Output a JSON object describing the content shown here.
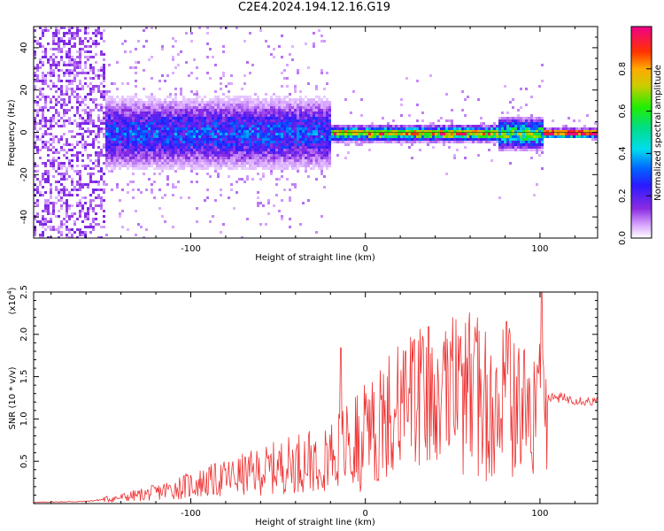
{
  "title": "C2E4.2024.194.12.16.G19",
  "chart_data": [
    {
      "type": "heatmap",
      "xlabel": "Height of straight line (km)",
      "ylabel": "Frequency (Hz)",
      "xlim": [
        -190,
        133
      ],
      "ylim": [
        -50,
        50
      ],
      "x_ticks": [
        -100,
        0,
        100
      ],
      "x_tick_labels": [
        "-100",
        "0",
        "100"
      ],
      "y_ticks": [
        -40,
        -20,
        0,
        20,
        40
      ],
      "y_tick_labels": [
        "-40",
        "-20",
        "0",
        "20",
        "40"
      ],
      "colorbar": {
        "label": "Normalized spectral amplitude",
        "range": [
          0,
          1
        ],
        "ticks": [
          0.0,
          0.2,
          0.4,
          0.6,
          0.8
        ],
        "tick_labels": [
          "0.0",
          "0.2",
          "0.4",
          "0.6",
          "0.8"
        ]
      },
      "bands": [
        {
          "x_start": -190,
          "x_end": -150,
          "half_width_hz": 50,
          "amplitude": 0.08
        },
        {
          "x_start": -150,
          "x_end": -20,
          "half_width_hz": 11,
          "amplitude": 0.28
        },
        {
          "x_start": -20,
          "x_end": 75,
          "half_width_hz": 2.5,
          "amplitude": 0.7
        },
        {
          "x_start": 75,
          "x_end": 102,
          "half_width_hz": 5,
          "amplitude": 0.55
        },
        {
          "x_start": 102,
          "x_end": 133,
          "half_width_hz": 1.5,
          "amplitude": 0.9
        }
      ],
      "grid": false
    },
    {
      "type": "line",
      "xlabel": "Height of straight line (km)",
      "ylabel": "SNR (10 * v/v)",
      "y_scale_label": "(x10",
      "y_scale_exponent": "4",
      "xlim": [
        -190,
        133
      ],
      "ylim": [
        0,
        25000
      ],
      "x_ticks": [
        -100,
        0,
        100
      ],
      "x_tick_labels": [
        "-100",
        "0",
        "100"
      ],
      "y_ticks": [
        5000,
        10000,
        15000,
        20000,
        25000
      ],
      "y_tick_labels": [
        "0.5",
        "1.0",
        "1.5",
        "2.0",
        "2.5"
      ],
      "series": [
        {
          "color": "#ee3333",
          "x": [
            -190,
            -160,
            -140,
            -120,
            -100,
            -80,
            -60,
            -40,
            -20,
            -10,
            0,
            10,
            20,
            30,
            40,
            50,
            60,
            70,
            80,
            90,
            100,
            104,
            110,
            120,
            133
          ],
          "y": [
            150,
            250,
            700,
            1300,
            2200,
            3000,
            3800,
            4800,
            6000,
            7000,
            8500,
            9800,
            11000,
            12000,
            12800,
            13200,
            13000,
            12600,
            12300,
            11200,
            11000,
            12400,
            12500,
            12300,
            12000
          ]
        }
      ],
      "annotations_peaks": [
        {
          "x": -14,
          "y": 18400
        },
        {
          "x": 36,
          "y": 20900
        },
        {
          "x": 81,
          "y": 21500
        },
        {
          "x": 101,
          "y": 25200
        }
      ],
      "grid": false
    }
  ]
}
